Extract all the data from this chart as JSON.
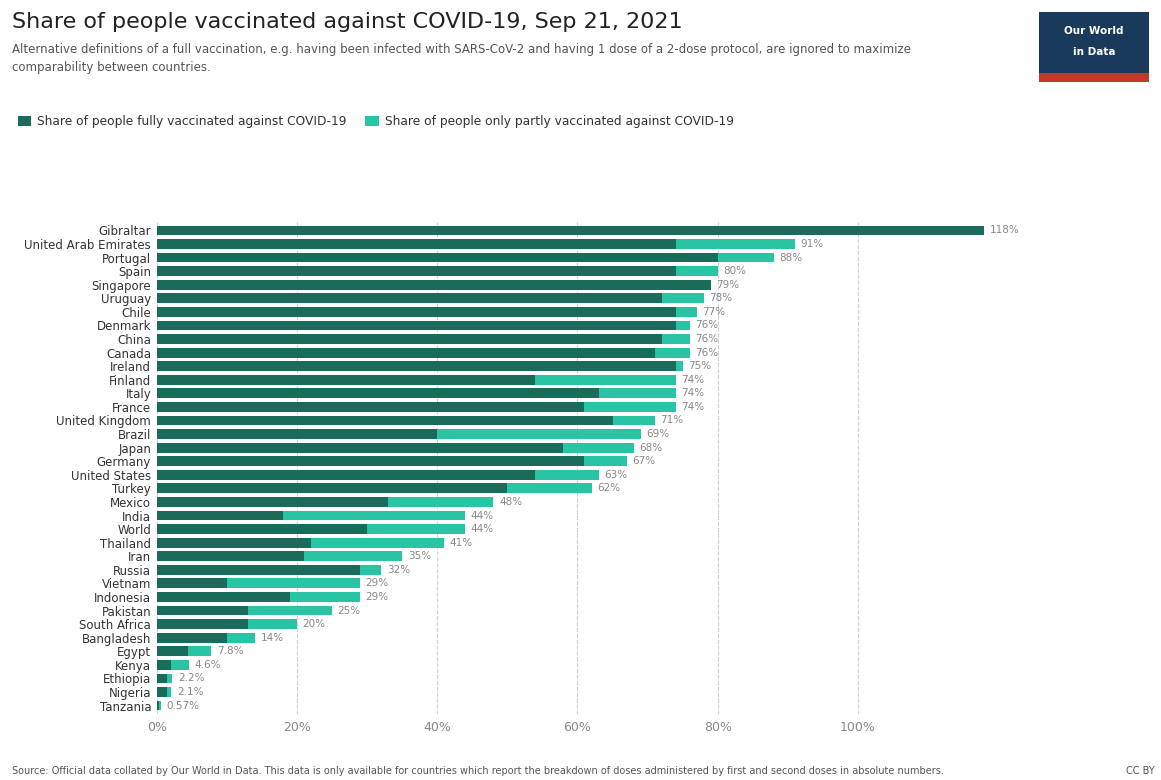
{
  "title": "Share of people vaccinated against COVID-19, Sep 21, 2021",
  "subtitle": "Alternative definitions of a full vaccination, e.g. having been infected with SARS-CoV-2 and having 1 dose of a 2-dose protocol, are ignored to maximize\ncomparability between countries.",
  "source": "Source: Official data collated by Our World in Data. This data is only available for countries which report the breakdown of doses administered by first and second doses in absolute numbers.",
  "cc": "CC BY",
  "legend_full": "Share of people fully vaccinated against COVID-19",
  "legend_partial": "Share of people only partly vaccinated against COVID-19",
  "countries": [
    "Gibraltar",
    "United Arab Emirates",
    "Portugal",
    "Spain",
    "Singapore",
    "Uruguay",
    "Chile",
    "Denmark",
    "China",
    "Canada",
    "Ireland",
    "Finland",
    "Italy",
    "France",
    "United Kingdom",
    "Brazil",
    "Japan",
    "Germany",
    "United States",
    "Turkey",
    "Mexico",
    "India",
    "World",
    "Thailand",
    "Iran",
    "Russia",
    "Vietnam",
    "Indonesia",
    "Pakistan",
    "South Africa",
    "Bangladesh",
    "Egypt",
    "Kenya",
    "Ethiopia",
    "Nigeria",
    "Tanzania"
  ],
  "fully_vaccinated": [
    118,
    74,
    80,
    74,
    79,
    72,
    74,
    74,
    72,
    71,
    74,
    54,
    63,
    61,
    65,
    40,
    58,
    61,
    54,
    50,
    33,
    18,
    30,
    22,
    21,
    29,
    10,
    19,
    13,
    13,
    10,
    4.5,
    2.1,
    1.5,
    1.4,
    0.37
  ],
  "partly_vaccinated": [
    0,
    17,
    8,
    6,
    0,
    6,
    3,
    2,
    4,
    5,
    1,
    20,
    11,
    13,
    6,
    29,
    10,
    6,
    9,
    12,
    15,
    26,
    14,
    19,
    14,
    3,
    19,
    10,
    12,
    7,
    4,
    3.3,
    2.5,
    0.7,
    0.7,
    0.2
  ],
  "total_labels": [
    "118%",
    "91%",
    "88%",
    "80%",
    "79%",
    "78%",
    "77%",
    "76%",
    "76%",
    "76%",
    "75%",
    "74%",
    "74%",
    "74%",
    "71%",
    "69%",
    "68%",
    "67%",
    "63%",
    "62%",
    "48%",
    "44%",
    "44%",
    "41%",
    "35%",
    "32%",
    "29%",
    "29%",
    "25%",
    "20%",
    "14%",
    "7.8%",
    "4.6%",
    "2.2%",
    "2.1%",
    "0.57%"
  ],
  "color_full": "#1a6b5a",
  "color_partial": "#28c4a3",
  "background_color": "#ffffff",
  "xlim": [
    0,
    125
  ],
  "xticks": [
    0,
    20,
    40,
    60,
    80,
    100
  ],
  "xtick_labels": [
    "0%",
    "20%",
    "40%",
    "60%",
    "80%",
    "100%"
  ],
  "title_color": "#333333",
  "subtitle_color": "#555555",
  "label_color": "#888888",
  "title_fontsize": 16,
  "subtitle_fontsize": 8.5,
  "bar_height": 0.72
}
